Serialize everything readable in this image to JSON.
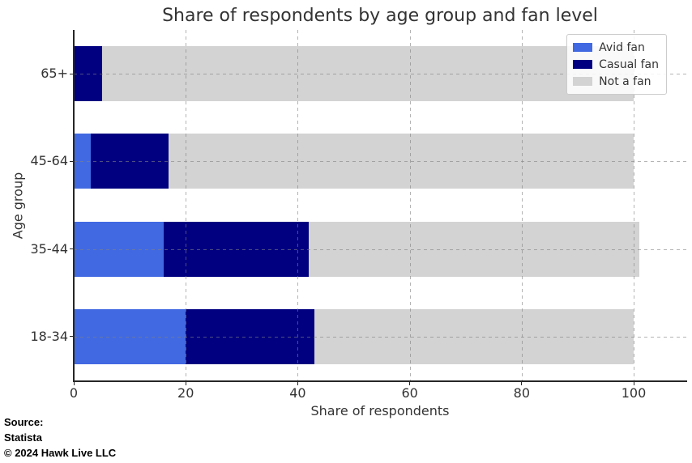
{
  "source": {
    "lines": [
      "Source:",
      "Statista",
      "© 2024 Hawk Live LLC"
    ]
  },
  "chart_data": {
    "type": "bar",
    "orientation": "horizontal",
    "stacked": true,
    "title": "Share of respondents by age group and fan level",
    "xlabel": "Share of respondents",
    "ylabel": "Age group",
    "categories": [
      "65+",
      "45-64",
      "35-44",
      "18-34"
    ],
    "series": [
      {
        "name": "Avid fan",
        "color": "#4169E1",
        "values": [
          0,
          3,
          16,
          20
        ]
      },
      {
        "name": "Casual fan",
        "color": "#000080",
        "values": [
          5,
          14,
          26,
          23
        ]
      },
      {
        "name": "Not a fan",
        "color": "#D3D3D3",
        "values": [
          95,
          83,
          59,
          57
        ]
      }
    ],
    "totals": [
      100,
      100,
      101,
      100
    ],
    "xlim": [
      0,
      109.4
    ],
    "x_tick_values": [
      0,
      20,
      40,
      60,
      80,
      100
    ],
    "grid": true,
    "grid_style": "dashed",
    "legend_position": "upper right",
    "background": "#FFFFFF",
    "spine_color": "#262626"
  }
}
